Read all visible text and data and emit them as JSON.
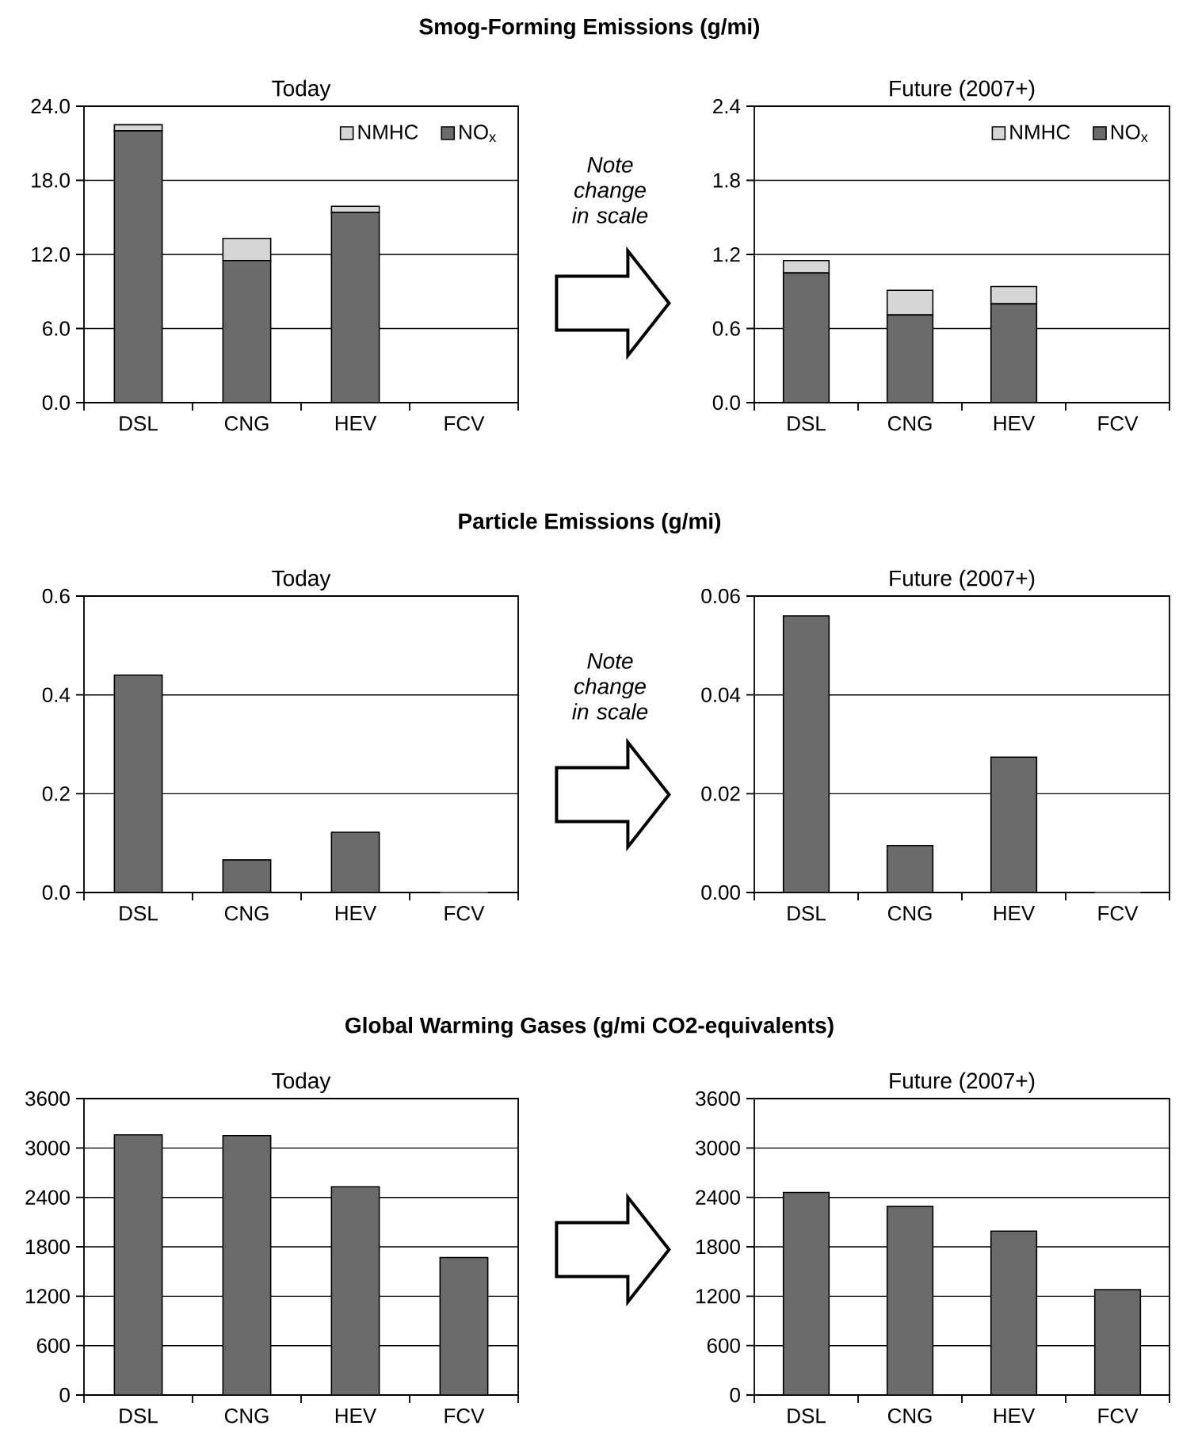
{
  "chart_data": [
    {
      "type": "bar",
      "title": "Smog-Forming Emissions (g/mi)",
      "subtitle": "Today",
      "categories": [
        "DSL",
        "CNG",
        "HEV",
        "FCV"
      ],
      "stacked": true,
      "series": [
        {
          "name": "NO$_{x}$",
          "color": "#6b6b6b",
          "values": [
            22.0,
            11.5,
            15.4,
            0
          ]
        },
        {
          "name": "NMHC",
          "color": "#d6d6d6",
          "values": [
            0.5,
            1.8,
            0.5,
            0
          ]
        }
      ],
      "ylim": [
        0,
        24
      ],
      "yticks": [
        {
          "value": 0,
          "label": "0.0"
        },
        {
          "value": 6,
          "label": "6.0"
        },
        {
          "value": 12,
          "label": "12.0"
        },
        {
          "value": 18,
          "label": "18.0"
        },
        {
          "value": 24,
          "label": "24.0"
        }
      ],
      "grid": "y",
      "legend": "top right"
    },
    {
      "type": "bar",
      "subtitle": "Future (2007+)",
      "categories": [
        "DSL",
        "CNG",
        "HEV",
        "FCV"
      ],
      "stacked": true,
      "series": [
        {
          "name": "NO$_{x}$",
          "color": "#6b6b6b",
          "values": [
            1.05,
            0.71,
            0.8,
            0
          ]
        },
        {
          "name": "NMHC",
          "color": "#d6d6d6",
          "values": [
            0.1,
            0.2,
            0.14,
            0
          ]
        }
      ],
      "ylim": [
        0,
        2.4
      ],
      "yticks": [
        {
          "value": 0,
          "label": "0.0"
        },
        0.6,
        1.2,
        1.8,
        2.4
      ],
      "grid": "y",
      "legend": "top right",
      "annotations": [
        "Note change in scale"
      ]
    },
    {
      "type": "bar",
      "title": "Particle Emissions (g/mi)",
      "subtitle": "Today",
      "categories": [
        "DSL",
        "CNG",
        "HEV",
        "FCV"
      ],
      "values": [
        0.44,
        0.066,
        0.122,
        0
      ],
      "color": "#6b6b6b",
      "ylim": [
        0,
        0.6
      ],
      "yticks": [
        {
          "value": 0,
          "label": "0.0"
        },
        0.2,
        0.4,
        0.6
      ],
      "grid": "y"
    },
    {
      "type": "bar",
      "subtitle": "Future (2007+)",
      "categories": [
        "DSL",
        "CNG",
        "HEV",
        "FCV"
      ],
      "values": [
        0.056,
        0.0095,
        0.0274,
        0
      ],
      "color": "#6b6b6b",
      "ylim": [
        0,
        0.06
      ],
      "yticks": [
        {
          "value": 0,
          "label": "0.00"
        },
        0.02,
        0.04,
        0.06
      ],
      "grid": "y",
      "annotations": [
        "Note change in scale"
      ]
    },
    {
      "type": "bar",
      "title": "Global Warming Gases (g/mi CO2-equivalents)",
      "subtitle": "Today",
      "categories": [
        "DSL",
        "CNG",
        "HEV",
        "FCV"
      ],
      "values": [
        3160,
        3150,
        2530,
        1670
      ],
      "color": "#6b6b6b",
      "ylim": [
        0,
        3600
      ],
      "yticks": [
        0,
        600,
        1200,
        1800,
        2400,
        3000,
        3600
      ],
      "grid": "y"
    },
    {
      "type": "bar",
      "subtitle": "Future (2007+)",
      "categories": [
        "DSL",
        "CNG",
        "HEV",
        "FCV"
      ],
      "values": [
        2460,
        2290,
        1990,
        1280
      ],
      "color": "#6b6b6b",
      "ylim": [
        0,
        3600
      ],
      "yticks": [
        0,
        600,
        1200,
        1800,
        2400,
        3000,
        3600
      ],
      "grid": "y"
    }
  ]
}
